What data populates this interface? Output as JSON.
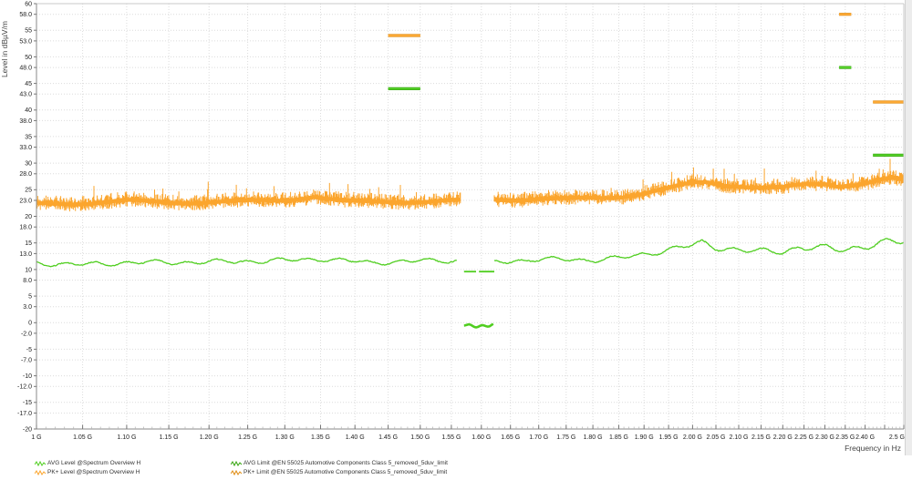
{
  "colors": {
    "trace_avg_green": "#50CE20",
    "trace_pk_orange": "#FBA52D",
    "limit_green_core": "#58D42C",
    "limit_green_edge": "#35A50E",
    "limit_orange_core": "#FFAC3A",
    "limit_orange_edge": "#E08C12",
    "grid": "#dcdcdc",
    "axis_dark": "#8a8a8a",
    "axis_light": "#c9c9c9",
    "tick": "#777777",
    "label_text": "#222222",
    "background": "#ffffff"
  },
  "axes": {
    "y_title": "Level in dBµV/m",
    "x_title": "Frequency in Hz"
  },
  "legend": {
    "items": [
      {
        "label": "AVG Level @Spectrum Overview H",
        "color": "#50CE20",
        "col": 0,
        "row": 0
      },
      {
        "label": "PK+ Level @Spectrum Overview H",
        "color": "#FBA52D",
        "col": 0,
        "row": 1
      },
      {
        "label": "AVG Limit @EN 55025 Automotive Components Class 5_removed_5duv_limit",
        "color": "#35A50E",
        "col": 1,
        "row": 0
      },
      {
        "label": "PK+ Limit @EN 55025 Automotive Components Class 5_removed_5duv_limit",
        "color": "#E08C12",
        "col": 1,
        "row": 1
      }
    ]
  },
  "chart_data": {
    "type": "line",
    "title": "",
    "xlabel": "Frequency in Hz",
    "ylabel": "Level in dBµV/m",
    "x_scale": "log",
    "x_range_ghz": [
      1.0,
      2.5
    ],
    "ylim": [
      -20,
      60
    ],
    "grid": true,
    "legend_position": "bottom",
    "x_minor_tick_step_ghz": 0.01,
    "x_ticks": [
      {
        "f": 1.0,
        "label": "1 G"
      },
      {
        "f": 1.05,
        "label": "1.05 G"
      },
      {
        "f": 1.1,
        "label": "1.10 G"
      },
      {
        "f": 1.15,
        "label": "1.15 G"
      },
      {
        "f": 1.2,
        "label": "1.20 G"
      },
      {
        "f": 1.25,
        "label": "1.25 G"
      },
      {
        "f": 1.3,
        "label": "1.30 G"
      },
      {
        "f": 1.35,
        "label": "1.35 G"
      },
      {
        "f": 1.4,
        "label": "1.40 G"
      },
      {
        "f": 1.45,
        "label": "1.45 G"
      },
      {
        "f": 1.5,
        "label": "1.50 G"
      },
      {
        "f": 1.55,
        "label": "1.55 G"
      },
      {
        "f": 1.6,
        "label": "1.60 G"
      },
      {
        "f": 1.65,
        "label": "1.65 G"
      },
      {
        "f": 1.7,
        "label": "1.70 G"
      },
      {
        "f": 1.75,
        "label": "1.75 G"
      },
      {
        "f": 1.8,
        "label": "1.80 G"
      },
      {
        "f": 1.85,
        "label": "1.85 G"
      },
      {
        "f": 1.9,
        "label": "1.90 G"
      },
      {
        "f": 1.95,
        "label": "1.95 G"
      },
      {
        "f": 2.0,
        "label": "2.00 G"
      },
      {
        "f": 2.05,
        "label": "2.05 G"
      },
      {
        "f": 2.1,
        "label": "2.10 G"
      },
      {
        "f": 2.15,
        "label": "2.15 G"
      },
      {
        "f": 2.2,
        "label": "2.20 G"
      },
      {
        "f": 2.25,
        "label": "2.25 G"
      },
      {
        "f": 2.3,
        "label": "2.30 G"
      },
      {
        "f": 2.35,
        "label": "2.35 G"
      },
      {
        "f": 2.4,
        "label": "2.40 G"
      },
      {
        "f": 2.45,
        "label": ""
      },
      {
        "f": 2.5,
        "label": "2.5 G"
      }
    ],
    "y_ticks": [
      {
        "v": 60,
        "label": "60"
      },
      {
        "v": 58,
        "label": "58.0"
      },
      {
        "v": 55,
        "label": "55"
      },
      {
        "v": 53,
        "label": "53.0"
      },
      {
        "v": 50,
        "label": "50"
      },
      {
        "v": 48,
        "label": "48.0"
      },
      {
        "v": 45,
        "label": "45"
      },
      {
        "v": 43,
        "label": "43.0"
      },
      {
        "v": 40,
        "label": "40"
      },
      {
        "v": 38,
        "label": "38.0"
      },
      {
        "v": 35,
        "label": "35"
      },
      {
        "v": 33,
        "label": "33.0"
      },
      {
        "v": 30,
        "label": "30"
      },
      {
        "v": 28,
        "label": "28.0"
      },
      {
        "v": 25,
        "label": "25"
      },
      {
        "v": 23,
        "label": "23.0"
      },
      {
        "v": 20,
        "label": "20"
      },
      {
        "v": 18,
        "label": "18.0"
      },
      {
        "v": 15,
        "label": "15"
      },
      {
        "v": 13,
        "label": "13.0"
      },
      {
        "v": 10,
        "label": "10"
      },
      {
        "v": 8,
        "label": "8.0"
      },
      {
        "v": 5,
        "label": "5"
      },
      {
        "v": 3,
        "label": "3.0"
      },
      {
        "v": 0,
        "label": "0"
      },
      {
        "v": -2,
        "label": "-2.0"
      },
      {
        "v": -5,
        "label": "-5"
      },
      {
        "v": -7,
        "label": "-7.0"
      },
      {
        "v": -10,
        "label": "-10"
      },
      {
        "v": -12,
        "label": "-12.0"
      },
      {
        "v": -15,
        "label": "-15"
      },
      {
        "v": -17,
        "label": "-17.0"
      },
      {
        "v": -20,
        "label": "-20"
      }
    ],
    "series": [
      {
        "name": "PK+ Level @Spectrum Overview H",
        "style": "noisy-band",
        "color": "#FBA52D",
        "noise_db_peak": 2.5,
        "segments": [
          {
            "range_ghz": [
              1.0,
              1.565
            ],
            "keypoints_ghz_db": [
              [
                1.0,
                22.3
              ],
              [
                1.05,
                22.5
              ],
              [
                1.1,
                22.9
              ],
              [
                1.15,
                22.6
              ],
              [
                1.2,
                22.7
              ],
              [
                1.25,
                22.8
              ],
              [
                1.3,
                23.1
              ],
              [
                1.34,
                23.8
              ],
              [
                1.38,
                22.8
              ],
              [
                1.42,
                22.7
              ],
              [
                1.46,
                22.8
              ],
              [
                1.5,
                22.8
              ],
              [
                1.55,
                22.9
              ],
              [
                1.565,
                22.9
              ]
            ]
          },
          {
            "range_ghz": [
              1.622,
              2.5
            ],
            "keypoints_ghz_db": [
              [
                1.622,
                23.2
              ],
              [
                1.7,
                23.3
              ],
              [
                1.75,
                23.2
              ],
              [
                1.8,
                23.4
              ],
              [
                1.85,
                23.7
              ],
              [
                1.9,
                24.4
              ],
              [
                1.95,
                25.2
              ],
              [
                2.0,
                26.2
              ],
              [
                2.03,
                26.4
              ],
              [
                2.07,
                25.9
              ],
              [
                2.1,
                25.8
              ],
              [
                2.15,
                25.4
              ],
              [
                2.2,
                25.3
              ],
              [
                2.25,
                25.9
              ],
              [
                2.3,
                26.2
              ],
              [
                2.33,
                25.8
              ],
              [
                2.37,
                26.0
              ],
              [
                2.4,
                26.2
              ],
              [
                2.44,
                26.8
              ],
              [
                2.47,
                27.0
              ],
              [
                2.5,
                26.6
              ]
            ]
          }
        ]
      },
      {
        "name": "AVG Level @Spectrum Overview H",
        "style": "smooth-line",
        "color": "#50CE20",
        "segments": [
          {
            "range_ghz": [
              1.0,
              1.56
            ],
            "keypoints_ghz_db": [
              [
                1.0,
                11.2
              ],
              [
                1.05,
                10.9
              ],
              [
                1.1,
                11.3
              ],
              [
                1.2,
                11.4
              ],
              [
                1.3,
                11.7
              ],
              [
                1.35,
                12.0
              ],
              [
                1.42,
                11.3
              ],
              [
                1.5,
                11.6
              ],
              [
                1.56,
                11.7
              ]
            ]
          },
          {
            "range_ghz": [
              1.622,
              2.5
            ],
            "keypoints_ghz_db": [
              [
                1.622,
                11.4
              ],
              [
                1.68,
                11.8
              ],
              [
                1.74,
                11.9
              ],
              [
                1.8,
                11.8
              ],
              [
                1.85,
                12.1
              ],
              [
                1.9,
                12.9
              ],
              [
                1.95,
                13.7
              ],
              [
                2.0,
                14.6
              ],
              [
                2.02,
                15.1
              ],
              [
                2.05,
                14.2
              ],
              [
                2.1,
                13.6
              ],
              [
                2.15,
                13.4
              ],
              [
                2.2,
                13.5
              ],
              [
                2.24,
                14.0
              ],
              [
                2.28,
                14.1
              ],
              [
                2.32,
                13.9
              ],
              [
                2.36,
                13.9
              ],
              [
                2.4,
                14.3
              ],
              [
                2.44,
                14.9
              ],
              [
                2.47,
                15.2
              ],
              [
                2.5,
                15.4
              ]
            ]
          }
        ],
        "notch_dashes": [
          {
            "range_ghz": [
              1.571,
              1.591
            ],
            "level_db": 9.6
          },
          {
            "range_ghz": [
              1.596,
              1.622
            ],
            "level_db": 9.6
          }
        ],
        "notch_dip": {
          "range_ghz": [
            1.571,
            1.621
          ],
          "level_db": -0.5
        }
      }
    ],
    "limits": [
      {
        "name": "PK+ Limit @EN 55025 Automotive Components Class 5_removed_5duv_limit",
        "color_core": "#FFAC3A",
        "color_edge": "#E08C12",
        "segments": [
          {
            "range_ghz": [
              1.45,
              1.5
            ],
            "level_db": 54
          },
          {
            "range_ghz": [
              2.335,
              2.365
            ],
            "level_db": 58
          },
          {
            "range_ghz": [
              2.42,
              2.5
            ],
            "level_db": 41.5
          }
        ]
      },
      {
        "name": "AVG Limit @EN 55025 Automotive Components Class 5_removed_5duv_limit",
        "color_core": "#58D42C",
        "color_edge": "#35A50E",
        "segments": [
          {
            "range_ghz": [
              1.45,
              1.5
            ],
            "level_db": 44
          },
          {
            "range_ghz": [
              2.335,
              2.365
            ],
            "level_db": 48
          },
          {
            "range_ghz": [
              2.42,
              2.5
            ],
            "level_db": 31.5
          }
        ]
      }
    ]
  }
}
